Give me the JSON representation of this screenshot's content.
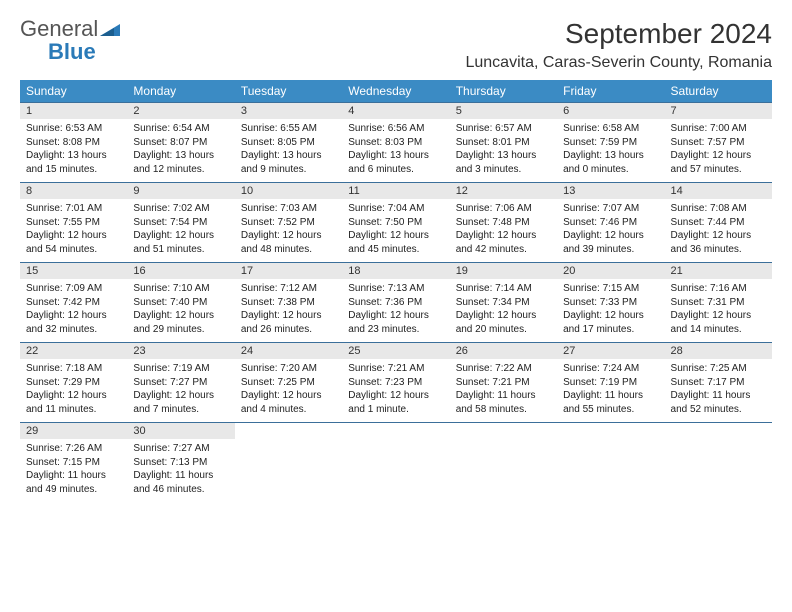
{
  "brand": {
    "name_part1": "General",
    "name_part2": "Blue",
    "text_color": "#555555",
    "accent_color": "#2a7ab8"
  },
  "title": "September 2024",
  "location": "Luncavita, Caras-Severin County, Romania",
  "header_bg": "#3b8bc4",
  "header_text_color": "#ffffff",
  "daynum_bg": "#e8e8e8",
  "week_border_color": "#3b6f9a",
  "background_color": "#ffffff",
  "title_fontsize": 28,
  "location_fontsize": 16,
  "header_fontsize": 12,
  "daynum_fontsize": 11,
  "body_fontsize": 10,
  "day_names": [
    "Sunday",
    "Monday",
    "Tuesday",
    "Wednesday",
    "Thursday",
    "Friday",
    "Saturday"
  ],
  "weeks": [
    [
      {
        "n": "1",
        "sr": "Sunrise: 6:53 AM",
        "ss": "Sunset: 8:08 PM",
        "dl": "Daylight: 13 hours and 15 minutes."
      },
      {
        "n": "2",
        "sr": "Sunrise: 6:54 AM",
        "ss": "Sunset: 8:07 PM",
        "dl": "Daylight: 13 hours and 12 minutes."
      },
      {
        "n": "3",
        "sr": "Sunrise: 6:55 AM",
        "ss": "Sunset: 8:05 PM",
        "dl": "Daylight: 13 hours and 9 minutes."
      },
      {
        "n": "4",
        "sr": "Sunrise: 6:56 AM",
        "ss": "Sunset: 8:03 PM",
        "dl": "Daylight: 13 hours and 6 minutes."
      },
      {
        "n": "5",
        "sr": "Sunrise: 6:57 AM",
        "ss": "Sunset: 8:01 PM",
        "dl": "Daylight: 13 hours and 3 minutes."
      },
      {
        "n": "6",
        "sr": "Sunrise: 6:58 AM",
        "ss": "Sunset: 7:59 PM",
        "dl": "Daylight: 13 hours and 0 minutes."
      },
      {
        "n": "7",
        "sr": "Sunrise: 7:00 AM",
        "ss": "Sunset: 7:57 PM",
        "dl": "Daylight: 12 hours and 57 minutes."
      }
    ],
    [
      {
        "n": "8",
        "sr": "Sunrise: 7:01 AM",
        "ss": "Sunset: 7:55 PM",
        "dl": "Daylight: 12 hours and 54 minutes."
      },
      {
        "n": "9",
        "sr": "Sunrise: 7:02 AM",
        "ss": "Sunset: 7:54 PM",
        "dl": "Daylight: 12 hours and 51 minutes."
      },
      {
        "n": "10",
        "sr": "Sunrise: 7:03 AM",
        "ss": "Sunset: 7:52 PM",
        "dl": "Daylight: 12 hours and 48 minutes."
      },
      {
        "n": "11",
        "sr": "Sunrise: 7:04 AM",
        "ss": "Sunset: 7:50 PM",
        "dl": "Daylight: 12 hours and 45 minutes."
      },
      {
        "n": "12",
        "sr": "Sunrise: 7:06 AM",
        "ss": "Sunset: 7:48 PM",
        "dl": "Daylight: 12 hours and 42 minutes."
      },
      {
        "n": "13",
        "sr": "Sunrise: 7:07 AM",
        "ss": "Sunset: 7:46 PM",
        "dl": "Daylight: 12 hours and 39 minutes."
      },
      {
        "n": "14",
        "sr": "Sunrise: 7:08 AM",
        "ss": "Sunset: 7:44 PM",
        "dl": "Daylight: 12 hours and 36 minutes."
      }
    ],
    [
      {
        "n": "15",
        "sr": "Sunrise: 7:09 AM",
        "ss": "Sunset: 7:42 PM",
        "dl": "Daylight: 12 hours and 32 minutes."
      },
      {
        "n": "16",
        "sr": "Sunrise: 7:10 AM",
        "ss": "Sunset: 7:40 PM",
        "dl": "Daylight: 12 hours and 29 minutes."
      },
      {
        "n": "17",
        "sr": "Sunrise: 7:12 AM",
        "ss": "Sunset: 7:38 PM",
        "dl": "Daylight: 12 hours and 26 minutes."
      },
      {
        "n": "18",
        "sr": "Sunrise: 7:13 AM",
        "ss": "Sunset: 7:36 PM",
        "dl": "Daylight: 12 hours and 23 minutes."
      },
      {
        "n": "19",
        "sr": "Sunrise: 7:14 AM",
        "ss": "Sunset: 7:34 PM",
        "dl": "Daylight: 12 hours and 20 minutes."
      },
      {
        "n": "20",
        "sr": "Sunrise: 7:15 AM",
        "ss": "Sunset: 7:33 PM",
        "dl": "Daylight: 12 hours and 17 minutes."
      },
      {
        "n": "21",
        "sr": "Sunrise: 7:16 AM",
        "ss": "Sunset: 7:31 PM",
        "dl": "Daylight: 12 hours and 14 minutes."
      }
    ],
    [
      {
        "n": "22",
        "sr": "Sunrise: 7:18 AM",
        "ss": "Sunset: 7:29 PM",
        "dl": "Daylight: 12 hours and 11 minutes."
      },
      {
        "n": "23",
        "sr": "Sunrise: 7:19 AM",
        "ss": "Sunset: 7:27 PM",
        "dl": "Daylight: 12 hours and 7 minutes."
      },
      {
        "n": "24",
        "sr": "Sunrise: 7:20 AM",
        "ss": "Sunset: 7:25 PM",
        "dl": "Daylight: 12 hours and 4 minutes."
      },
      {
        "n": "25",
        "sr": "Sunrise: 7:21 AM",
        "ss": "Sunset: 7:23 PM",
        "dl": "Daylight: 12 hours and 1 minute."
      },
      {
        "n": "26",
        "sr": "Sunrise: 7:22 AM",
        "ss": "Sunset: 7:21 PM",
        "dl": "Daylight: 11 hours and 58 minutes."
      },
      {
        "n": "27",
        "sr": "Sunrise: 7:24 AM",
        "ss": "Sunset: 7:19 PM",
        "dl": "Daylight: 11 hours and 55 minutes."
      },
      {
        "n": "28",
        "sr": "Sunrise: 7:25 AM",
        "ss": "Sunset: 7:17 PM",
        "dl": "Daylight: 11 hours and 52 minutes."
      }
    ],
    [
      {
        "n": "29",
        "sr": "Sunrise: 7:26 AM",
        "ss": "Sunset: 7:15 PM",
        "dl": "Daylight: 11 hours and 49 minutes."
      },
      {
        "n": "30",
        "sr": "Sunrise: 7:27 AM",
        "ss": "Sunset: 7:13 PM",
        "dl": "Daylight: 11 hours and 46 minutes."
      },
      null,
      null,
      null,
      null,
      null
    ]
  ]
}
